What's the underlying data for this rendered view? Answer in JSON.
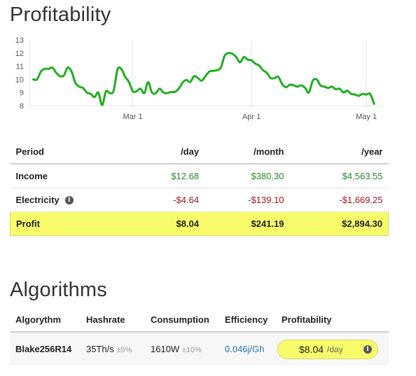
{
  "profitability": {
    "title": "Profitability"
  },
  "chart_data": {
    "type": "line",
    "title": "Profitability",
    "xlabel": "",
    "ylabel": "",
    "yticks": [
      8,
      9,
      10,
      11,
      12,
      13
    ],
    "ylim": [
      8,
      13
    ],
    "xlim": [
      "2024-02-03",
      "2024-05-05"
    ],
    "xticks": [
      {
        "label": "Mar 1",
        "date": "2024-03-01"
      },
      {
        "label": "Apr 1",
        "date": "2024-04-01"
      },
      {
        "label": "May 1",
        "date": "2024-05-01"
      }
    ],
    "grid": "vertical",
    "color": "#1fae1f",
    "series": [
      {
        "x": [
          "2024-02-04",
          "2024-02-05",
          "2024-02-06",
          "2024-02-07",
          "2024-02-08",
          "2024-02-09",
          "2024-02-10",
          "2024-02-11",
          "2024-02-12",
          "2024-02-13",
          "2024-02-14",
          "2024-02-15",
          "2024-02-16",
          "2024-02-17",
          "2024-02-18",
          "2024-02-19",
          "2024-02-20",
          "2024-02-21",
          "2024-02-22",
          "2024-02-23",
          "2024-02-24",
          "2024-02-25",
          "2024-02-26",
          "2024-02-27",
          "2024-02-28",
          "2024-02-29",
          "2024-03-01",
          "2024-03-02",
          "2024-03-03",
          "2024-03-04",
          "2024-03-05",
          "2024-03-06",
          "2024-03-07",
          "2024-03-08",
          "2024-03-09",
          "2024-03-10",
          "2024-03-11",
          "2024-03-12",
          "2024-03-13",
          "2024-03-14",
          "2024-03-15",
          "2024-03-16",
          "2024-03-17",
          "2024-03-18",
          "2024-03-19",
          "2024-03-20",
          "2024-03-21",
          "2024-03-22",
          "2024-03-23",
          "2024-03-24",
          "2024-03-25",
          "2024-03-26",
          "2024-03-27",
          "2024-03-28",
          "2024-03-29",
          "2024-03-30",
          "2024-03-31",
          "2024-04-01",
          "2024-04-02",
          "2024-04-03",
          "2024-04-04",
          "2024-04-05",
          "2024-04-06",
          "2024-04-07",
          "2024-04-08",
          "2024-04-09",
          "2024-04-10",
          "2024-04-11",
          "2024-04-12",
          "2024-04-13",
          "2024-04-14",
          "2024-04-15",
          "2024-04-16",
          "2024-04-17",
          "2024-04-18",
          "2024-04-19",
          "2024-04-20",
          "2024-04-21",
          "2024-04-22",
          "2024-04-23",
          "2024-04-24",
          "2024-04-25",
          "2024-04-26",
          "2024-04-27",
          "2024-04-28",
          "2024-04-29",
          "2024-04-30",
          "2024-05-01",
          "2024-05-02",
          "2024-05-03"
        ],
        "values": [
          10.0,
          10.0,
          10.6,
          10.8,
          10.8,
          10.9,
          10.5,
          10.25,
          10.3,
          10.9,
          10.6,
          9.75,
          9.45,
          9.35,
          9.0,
          8.9,
          8.65,
          9.0,
          8.05,
          9.1,
          8.95,
          9.15,
          10.75,
          10.8,
          10.2,
          9.8,
          9.1,
          9.1,
          9.3,
          8.95,
          9.8,
          9.0,
          8.95,
          9.3,
          9.0,
          8.95,
          9.05,
          9.05,
          9.3,
          9.75,
          9.95,
          9.8,
          10.25,
          10.1,
          9.9,
          10.25,
          10.6,
          10.65,
          10.7,
          10.9,
          11.8,
          12.0,
          11.95,
          11.7,
          11.3,
          11.7,
          11.5,
          11.45,
          11.2,
          11.05,
          10.7,
          10.5,
          10.1,
          10.1,
          10.2,
          9.65,
          9.4,
          9.6,
          9.55,
          9.45,
          9.55,
          9.35,
          9.0,
          9.9,
          10.0,
          9.55,
          9.45,
          9.35,
          9.45,
          9.25,
          9.3,
          9.0,
          9.15,
          8.9,
          8.85,
          8.75,
          8.9,
          8.85,
          8.9,
          8.15
        ]
      }
    ]
  },
  "profit_table": {
    "headers": {
      "period": "Period",
      "day": "/day",
      "month": "/month",
      "year": "/year"
    },
    "rows": {
      "income": {
        "label": "Income",
        "day": "$12.68",
        "month": "$380.30",
        "year": "$4,563.55"
      },
      "electricity": {
        "label": "Electricity",
        "day": "-$4.64",
        "month": "-$139.10",
        "year": "-$1,669.25"
      },
      "profit": {
        "label": "Profit",
        "day": "$8.04",
        "month": "$241.19",
        "year": "$2,894.30"
      }
    },
    "info_glyph": "i",
    "colors": {
      "income": "#2a8a2a",
      "electricity": "#a01818",
      "profit_highlight": "#f8fb6a"
    }
  },
  "algorithms": {
    "title": "Algorithms",
    "headers": {
      "algorythm": "Algorythm",
      "hashrate": "Hashrate",
      "consumption": "Consumption",
      "efficiency": "Efficiency",
      "profitability": "Profitability"
    },
    "rows": [
      {
        "algorythm": "Blake256R14",
        "hashrate": "35Th/s",
        "hashrate_tolerance": "±5%",
        "consumption": "1610W",
        "consumption_tolerance": "±10%",
        "efficiency": "0.046j/Gh",
        "profitability": "$8.04",
        "profitability_unit": "/day",
        "info_glyph": "i"
      }
    ]
  }
}
